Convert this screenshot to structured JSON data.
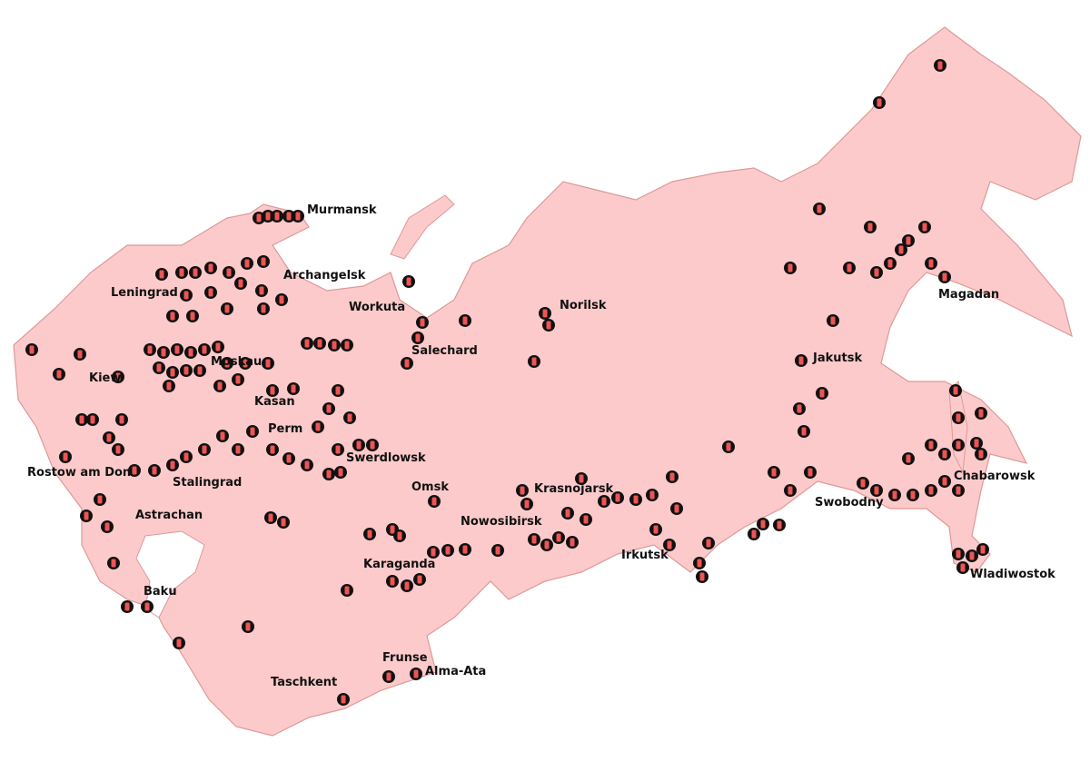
{
  "cities": [
    "Murmansk",
    "Archangelsk",
    "Leningrad",
    "Workuta",
    "Norilsk",
    "Moskau",
    "Salechard",
    "Kiew",
    "Kasan",
    "Perm",
    "Swerdlowsk",
    "Rostow am Don",
    "Stalingrad",
    "Omsk",
    "Krasnojarsk",
    "Astrachan",
    "Nowosibirsk",
    "Karaganda",
    "Irkutsk",
    "Baku",
    "Frunse",
    "Alma-Ata",
    "Taschkent",
    "Magadan",
    "Jakutsk",
    "Chabarowsk",
    "Swobodny",
    "Wladiwostok"
  ]
}
